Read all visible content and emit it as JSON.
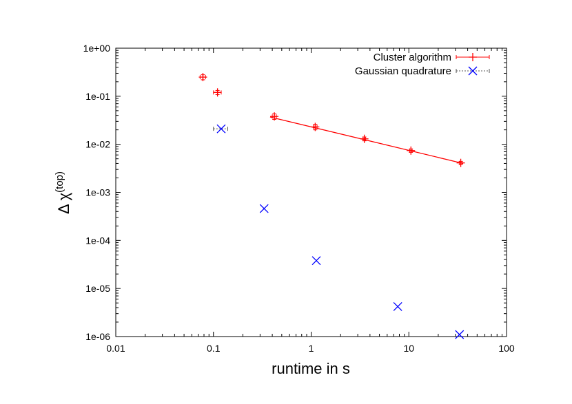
{
  "chart_data": {
    "type": "scatter",
    "xlabel": "runtime in s",
    "ylabel_base": "Δ χ",
    "ylabel_sup": "(top)",
    "xscale": "log",
    "yscale": "log",
    "xlim": [
      0.01,
      100
    ],
    "ylim": [
      1e-06,
      1
    ],
    "x_ticks": [
      {
        "value": 0.01,
        "label": "0.01"
      },
      {
        "value": 0.1,
        "label": "0.1"
      },
      {
        "value": 1,
        "label": "1"
      },
      {
        "value": 10,
        "label": "10"
      },
      {
        "value": 100,
        "label": "100"
      }
    ],
    "y_ticks": [
      {
        "value": 1,
        "label": "1e+00"
      },
      {
        "value": 0.1,
        "label": "1e-01"
      },
      {
        "value": 0.01,
        "label": "1e-02"
      },
      {
        "value": 0.001,
        "label": "1e-03"
      },
      {
        "value": 0.0001,
        "label": "1e-04"
      },
      {
        "value": 1e-05,
        "label": "1e-05"
      },
      {
        "value": 1e-06,
        "label": "1e-06"
      }
    ],
    "grid": false,
    "legend_position": "top-right",
    "series": [
      {
        "name": "Cluster algorithm",
        "color": "#ff0000",
        "marker": "plus",
        "line_style": "solid",
        "points": [
          {
            "x": 0.078,
            "y": 0.25,
            "xerr": 0.005,
            "yerr": 0.03
          },
          {
            "x": 0.11,
            "y": 0.12,
            "xerr": 0.01,
            "yerr": 0.012
          },
          {
            "x": 0.42,
            "y": 0.038,
            "xerr": 0.02,
            "yerr": 0.005
          },
          {
            "x": 1.1,
            "y": 0.023,
            "xerr": 0.05,
            "yerr": 0.003
          },
          {
            "x": 3.5,
            "y": 0.013,
            "xerr": 0.1,
            "yerr": 0.0012
          },
          {
            "x": 10.5,
            "y": 0.0074,
            "xerr": 0.3,
            "yerr": 0.0006
          },
          {
            "x": 34,
            "y": 0.0041,
            "xerr": 1,
            "yerr": 0.0003
          }
        ],
        "fit_line": [
          {
            "x": 0.38,
            "y": 0.037
          },
          {
            "x": 36,
            "y": 0.004
          }
        ]
      },
      {
        "name": "Gaussian quadrature",
        "color": "#0000ff",
        "marker": "cross",
        "line_style": "dotted",
        "points": [
          {
            "x": 0.12,
            "y": 0.021,
            "xerr": 0.02
          },
          {
            "x": 0.33,
            "y": 0.00046
          },
          {
            "x": 1.13,
            "y": 3.8e-05
          },
          {
            "x": 7.7,
            "y": 4.2e-06
          },
          {
            "x": 33,
            "y": 1.1e-06
          }
        ]
      }
    ]
  }
}
